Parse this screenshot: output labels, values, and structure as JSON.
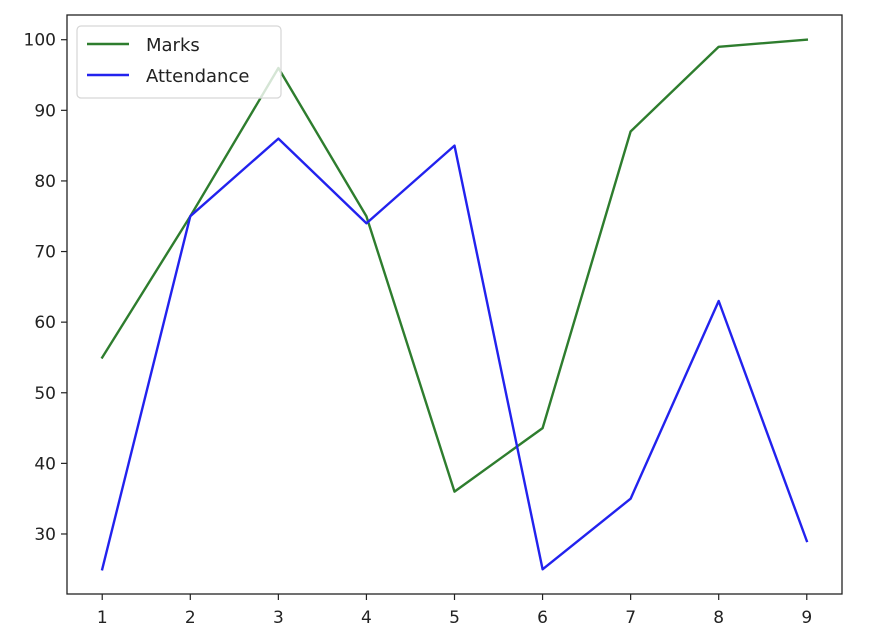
{
  "chart_data": {
    "type": "line",
    "title": "",
    "xlabel": "",
    "ylabel": "",
    "x": [
      1,
      2,
      3,
      4,
      5,
      6,
      7,
      8,
      9
    ],
    "xlim": [
      0.6,
      9.4
    ],
    "ylim": [
      21.5,
      103.5
    ],
    "xticks": [
      1,
      2,
      3,
      4,
      5,
      6,
      7,
      8,
      9
    ],
    "yticks": [
      30,
      40,
      50,
      60,
      70,
      80,
      90,
      100
    ],
    "grid": false,
    "legend_position": "upper-left",
    "series": [
      {
        "name": "Marks",
        "color": "#2e7d2e",
        "values": [
          55,
          75,
          96,
          75,
          36,
          45,
          87,
          99,
          100
        ]
      },
      {
        "name": "Attendance",
        "color": "#2222ee",
        "values": [
          25,
          75,
          86,
          74,
          85,
          25,
          35,
          63,
          29
        ]
      }
    ]
  }
}
